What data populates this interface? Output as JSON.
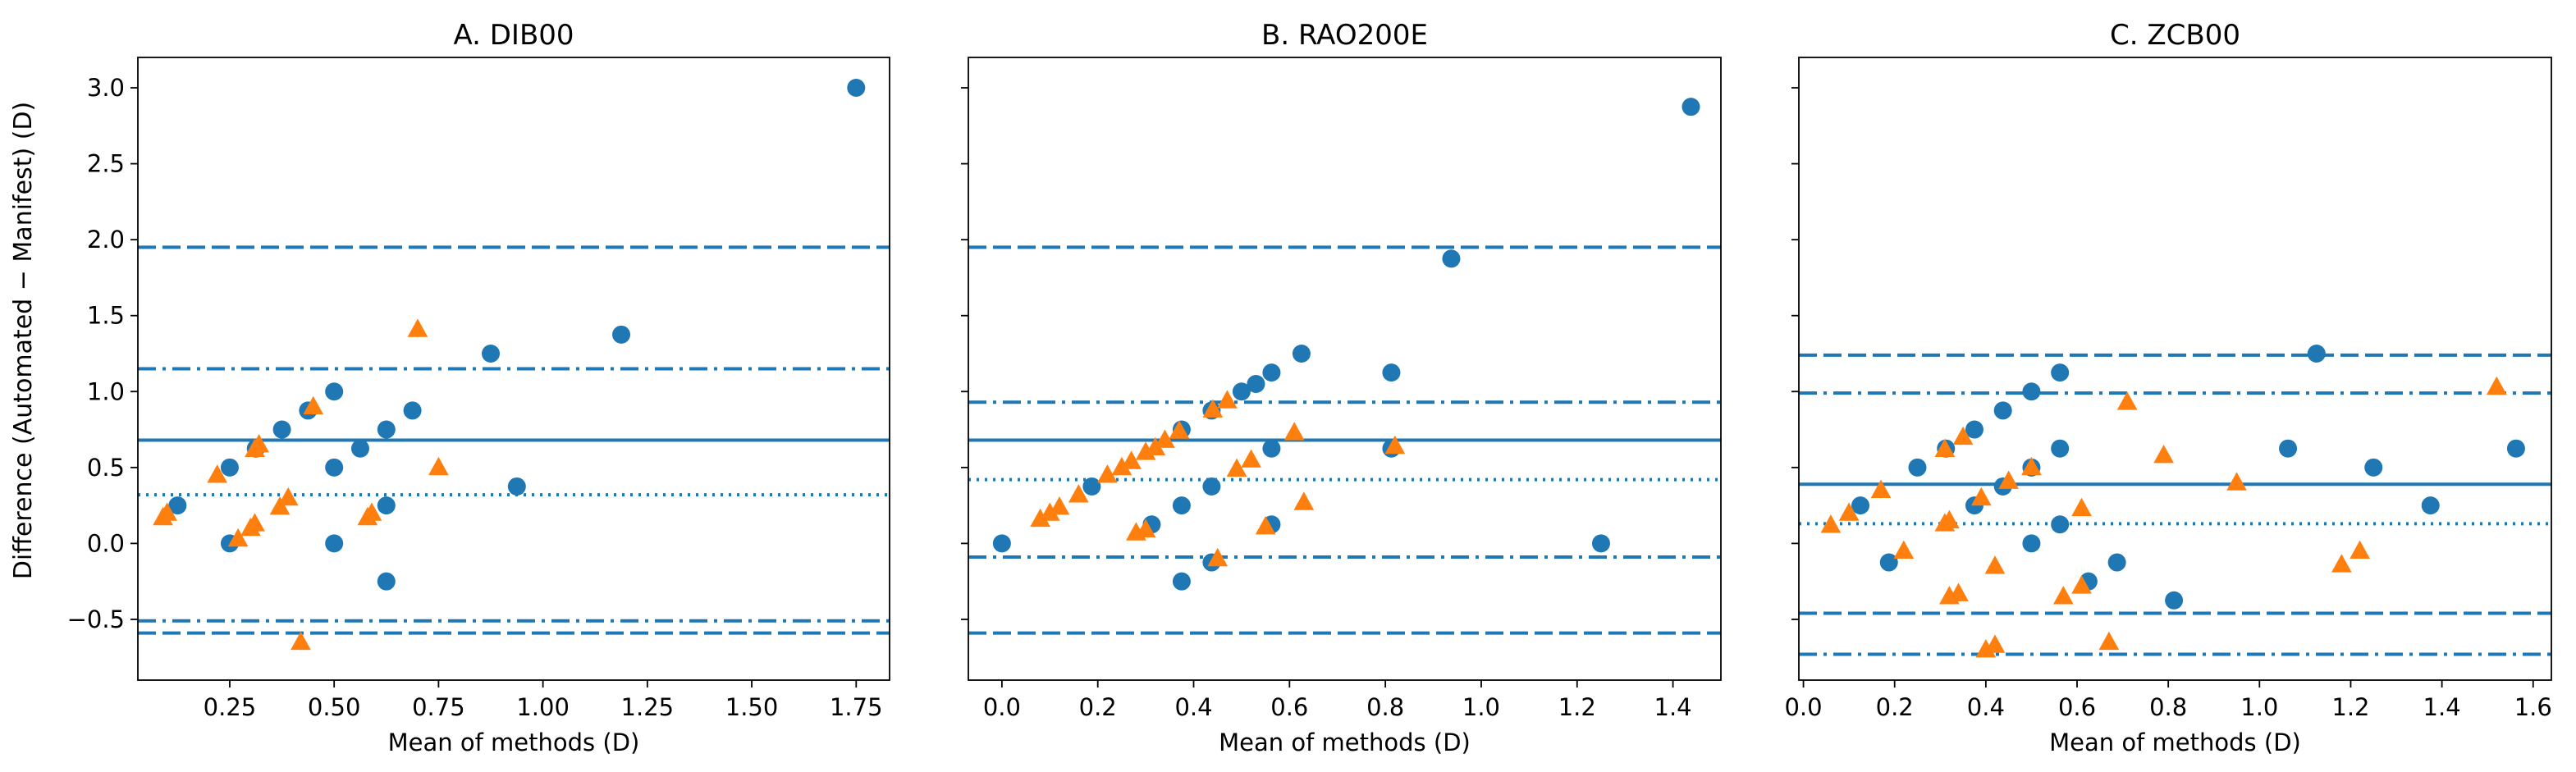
{
  "figure": {
    "ylabel": "Difference (Automated − Manifest) (D)",
    "xlabel": "Mean of methods (D)"
  },
  "colors": {
    "blue": "#1f77b4",
    "orange": "#ff7f0e"
  },
  "chart_data": [
    {
      "type": "scatter",
      "title": "A. DIB00",
      "xlabel": "Mean of methods (D)",
      "ylabel": "Difference (Automated − Manifest) (D)",
      "xlim": [
        0.03,
        1.83
      ],
      "ylim": [
        -0.9,
        3.2
      ],
      "xticks": [
        0.25,
        0.5,
        0.75,
        1.0,
        1.25,
        1.5,
        1.75
      ],
      "xticklabels": [
        "0.25",
        "0.50",
        "0.75",
        "1.00",
        "1.25",
        "1.50",
        "1.75"
      ],
      "yticks": [
        -0.5,
        0.0,
        0.5,
        1.0,
        1.5,
        2.0,
        2.5,
        3.0
      ],
      "yticklabels": [
        "−0.5",
        "0.0",
        "0.5",
        "1.0",
        "1.5",
        "2.0",
        "2.5",
        "3.0"
      ],
      "hlines": [
        {
          "y": 0.68,
          "style": "solid",
          "color": "#1f77b4"
        },
        {
          "y": 0.32,
          "style": "dotted",
          "color": "#1f77b4"
        },
        {
          "y": 1.95,
          "style": "dashed",
          "color": "#1f77b4"
        },
        {
          "y": -0.59,
          "style": "dashed",
          "color": "#1f77b4"
        },
        {
          "y": 1.15,
          "style": "dashdot",
          "color": "#1f77b4"
        },
        {
          "y": -0.51,
          "style": "dashdot",
          "color": "#1f77b4"
        }
      ],
      "series": [
        {
          "marker": "circle",
          "color": "#1f77b4",
          "points": [
            [
              0.125,
              0.25
            ],
            [
              0.25,
              0.5
            ],
            [
              0.25,
              0.0
            ],
            [
              0.3125,
              0.625
            ],
            [
              0.375,
              0.75
            ],
            [
              0.4375,
              0.875
            ],
            [
              0.5,
              1.0
            ],
            [
              0.5,
              0.5
            ],
            [
              0.5,
              0.0
            ],
            [
              0.5625,
              0.625
            ],
            [
              0.625,
              0.75
            ],
            [
              0.625,
              0.25
            ],
            [
              0.625,
              -0.25
            ],
            [
              0.6875,
              0.875
            ],
            [
              0.875,
              1.25
            ],
            [
              0.9375,
              0.375
            ],
            [
              1.1875,
              1.375
            ],
            [
              1.75,
              3.0
            ]
          ]
        },
        {
          "marker": "triangle",
          "color": "#ff7f0e",
          "points": [
            [
              0.09,
              0.17
            ],
            [
              0.1,
              0.2
            ],
            [
              0.22,
              0.45
            ],
            [
              0.27,
              0.03
            ],
            [
              0.3,
              0.1
            ],
            [
              0.31,
              0.13
            ],
            [
              0.31,
              0.62
            ],
            [
              0.32,
              0.65
            ],
            [
              0.37,
              0.24
            ],
            [
              0.39,
              0.3
            ],
            [
              0.42,
              -0.65
            ],
            [
              0.45,
              0.9
            ],
            [
              0.58,
              0.17
            ],
            [
              0.59,
              0.2
            ],
            [
              0.7,
              1.41
            ],
            [
              0.75,
              0.5
            ]
          ]
        }
      ]
    },
    {
      "type": "scatter",
      "title": "B. RAO200E",
      "xlabel": "Mean of methods (D)",
      "ylabel": "",
      "xlim": [
        -0.07,
        1.5
      ],
      "ylim": [
        -0.9,
        3.2
      ],
      "xticks": [
        0.0,
        0.2,
        0.4,
        0.6,
        0.8,
        1.0,
        1.2,
        1.4
      ],
      "xticklabels": [
        "0.0",
        "0.2",
        "0.4",
        "0.6",
        "0.8",
        "1.0",
        "1.2",
        "1.4"
      ],
      "yticks": [
        -0.5,
        0.0,
        0.5,
        1.0,
        1.5,
        2.0,
        2.5,
        3.0
      ],
      "yticklabels": [],
      "hlines": [
        {
          "y": 0.68,
          "style": "solid",
          "color": "#1f77b4"
        },
        {
          "y": 0.42,
          "style": "dotted",
          "color": "#1f77b4"
        },
        {
          "y": 1.95,
          "style": "dashed",
          "color": "#1f77b4"
        },
        {
          "y": -0.59,
          "style": "dashed",
          "color": "#1f77b4"
        },
        {
          "y": 0.93,
          "style": "dashdot",
          "color": "#1f77b4"
        },
        {
          "y": -0.09,
          "style": "dashdot",
          "color": "#1f77b4"
        }
      ],
      "series": [
        {
          "marker": "circle",
          "color": "#1f77b4",
          "points": [
            [
              0.0,
              0.0
            ],
            [
              0.1875,
              0.375
            ],
            [
              0.3125,
              0.125
            ],
            [
              0.375,
              0.75
            ],
            [
              0.375,
              0.25
            ],
            [
              0.375,
              -0.25
            ],
            [
              0.4375,
              0.875
            ],
            [
              0.4375,
              0.375
            ],
            [
              0.4375,
              -0.125
            ],
            [
              0.5,
              1.0
            ],
            [
              0.53,
              1.05
            ],
            [
              0.5625,
              1.125
            ],
            [
              0.5625,
              0.625
            ],
            [
              0.5625,
              0.125
            ],
            [
              0.625,
              1.25
            ],
            [
              0.8125,
              1.125
            ],
            [
              0.8125,
              0.625
            ],
            [
              0.9375,
              1.875
            ],
            [
              1.25,
              0.0
            ],
            [
              1.4375,
              2.875
            ]
          ]
        },
        {
          "marker": "triangle",
          "color": "#ff7f0e",
          "points": [
            [
              0.08,
              0.16
            ],
            [
              0.1,
              0.2
            ],
            [
              0.12,
              0.24
            ],
            [
              0.16,
              0.32
            ],
            [
              0.22,
              0.45
            ],
            [
              0.25,
              0.5
            ],
            [
              0.27,
              0.54
            ],
            [
              0.28,
              0.07
            ],
            [
              0.3,
              0.09
            ],
            [
              0.3,
              0.6
            ],
            [
              0.32,
              0.63
            ],
            [
              0.34,
              0.68
            ],
            [
              0.37,
              0.74
            ],
            [
              0.44,
              0.88
            ],
            [
              0.45,
              -0.1
            ],
            [
              0.47,
              0.94
            ],
            [
              0.49,
              0.49
            ],
            [
              0.52,
              0.55
            ],
            [
              0.55,
              0.11
            ],
            [
              0.61,
              0.73
            ],
            [
              0.63,
              0.27
            ],
            [
              0.82,
              0.64
            ]
          ]
        }
      ]
    },
    {
      "type": "scatter",
      "title": "C. ZCB00",
      "xlabel": "Mean of methods (D)",
      "ylabel": "",
      "xlim": [
        -0.01,
        1.64
      ],
      "ylim": [
        -0.9,
        3.2
      ],
      "xticks": [
        0.0,
        0.2,
        0.4,
        0.6,
        0.8,
        1.0,
        1.2,
        1.4,
        1.6
      ],
      "xticklabels": [
        "0.0",
        "0.2",
        "0.4",
        "0.6",
        "0.8",
        "1.0",
        "1.2",
        "1.4",
        "1.6"
      ],
      "yticks": [
        -0.5,
        0.0,
        0.5,
        1.0,
        1.5,
        2.0,
        2.5,
        3.0
      ],
      "yticklabels": [],
      "hlines": [
        {
          "y": 0.39,
          "style": "solid",
          "color": "#1f77b4"
        },
        {
          "y": 0.13,
          "style": "dotted",
          "color": "#1f77b4"
        },
        {
          "y": 1.24,
          "style": "dashed",
          "color": "#1f77b4"
        },
        {
          "y": -0.46,
          "style": "dashed",
          "color": "#1f77b4"
        },
        {
          "y": 0.99,
          "style": "dashdot",
          "color": "#1f77b4"
        },
        {
          "y": -0.73,
          "style": "dashdot",
          "color": "#1f77b4"
        }
      ],
      "series": [
        {
          "marker": "circle",
          "color": "#1f77b4",
          "points": [
            [
              0.125,
              0.25
            ],
            [
              0.1875,
              -0.125
            ],
            [
              0.25,
              0.5
            ],
            [
              0.3125,
              0.625
            ],
            [
              0.375,
              0.75
            ],
            [
              0.375,
              0.25
            ],
            [
              0.4375,
              0.875
            ],
            [
              0.4375,
              0.375
            ],
            [
              0.5,
              1.0
            ],
            [
              0.5,
              0.5
            ],
            [
              0.5,
              0.0
            ],
            [
              0.5625,
              1.125
            ],
            [
              0.5625,
              0.625
            ],
            [
              0.5625,
              0.125
            ],
            [
              0.625,
              -0.25
            ],
            [
              0.6875,
              -0.125
            ],
            [
              0.8125,
              -0.375
            ],
            [
              1.0625,
              0.625
            ],
            [
              1.125,
              1.25
            ],
            [
              1.25,
              0.5
            ],
            [
              1.375,
              0.25
            ],
            [
              1.5625,
              0.625
            ]
          ]
        },
        {
          "marker": "triangle",
          "color": "#ff7f0e",
          "points": [
            [
              0.06,
              0.12
            ],
            [
              0.1,
              0.2
            ],
            [
              0.17,
              0.35
            ],
            [
              0.22,
              -0.05
            ],
            [
              0.31,
              0.62
            ],
            [
              0.31,
              0.13
            ],
            [
              0.32,
              0.15
            ],
            [
              0.32,
              -0.35
            ],
            [
              0.34,
              -0.33
            ],
            [
              0.35,
              0.7
            ],
            [
              0.39,
              0.3
            ],
            [
              0.4,
              -0.7
            ],
            [
              0.42,
              -0.67
            ],
            [
              0.42,
              -0.15
            ],
            [
              0.45,
              0.41
            ],
            [
              0.5,
              0.5
            ],
            [
              0.57,
              -0.35
            ],
            [
              0.61,
              0.23
            ],
            [
              0.61,
              -0.28
            ],
            [
              0.67,
              -0.65
            ],
            [
              0.71,
              0.93
            ],
            [
              0.79,
              0.58
            ],
            [
              0.95,
              0.4
            ],
            [
              1.18,
              -0.14
            ],
            [
              1.22,
              -0.05
            ],
            [
              1.52,
              1.03
            ]
          ]
        }
      ]
    }
  ]
}
